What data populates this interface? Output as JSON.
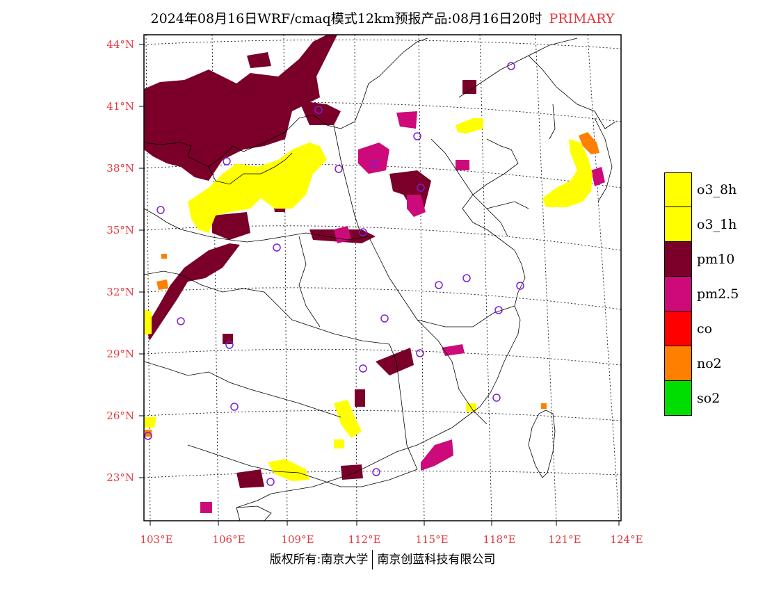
{
  "title": {
    "main": "2024年08月16日WRF/cmaq模式12km预报产品:08月16日20时",
    "tag": "PRIMARY"
  },
  "axes": {
    "lat_labels": [
      "44°N",
      "41°N",
      "38°N",
      "35°N",
      "32°N",
      "29°N",
      "26°N",
      "23°N"
    ],
    "lon_labels": [
      "103°E",
      "106°E",
      "109°E",
      "112°E",
      "115°E",
      "118°E",
      "121°E",
      "124°E"
    ],
    "label_color": "#e8383d"
  },
  "legend": [
    {
      "label": "o3_8h",
      "color": "#ffff00"
    },
    {
      "label": "o3_1h",
      "color": "#ffff00"
    },
    {
      "label": "pm10",
      "color": "#7a0029"
    },
    {
      "label": "pm2.5",
      "color": "#cc0a7a"
    },
    {
      "label": "co",
      "color": "#ff0000"
    },
    {
      "label": "no2",
      "color": "#ff7f00"
    },
    {
      "label": "so2",
      "color": "#00dd00"
    }
  ],
  "footer": {
    "left": "版权所有:南京大学",
    "right": "南京创蓝科技有限公司"
  }
}
